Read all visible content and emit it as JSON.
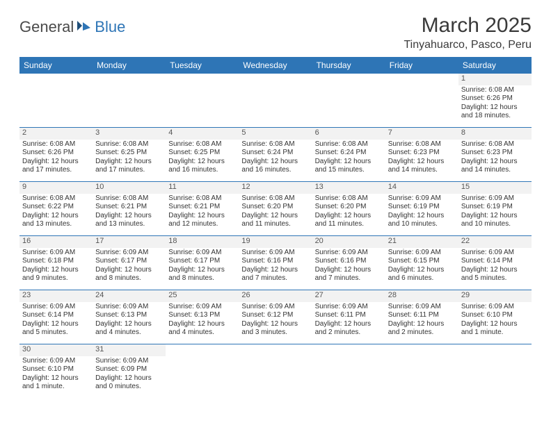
{
  "logo": {
    "general": "General",
    "blue": "Blue"
  },
  "title": "March 2025",
  "location": "Tinyahuarco, Pasco, Peru",
  "day_headers": [
    "Sunday",
    "Monday",
    "Tuesday",
    "Wednesday",
    "Thursday",
    "Friday",
    "Saturday"
  ],
  "colors": {
    "header_bg": "#2e75b6",
    "header_text": "#ffffff",
    "border": "#2e75b6",
    "empty_bg": "#f2f2f2",
    "text": "#333333"
  },
  "weeks": [
    [
      null,
      null,
      null,
      null,
      null,
      null,
      {
        "n": "1",
        "sr": "Sunrise: 6:08 AM",
        "ss": "Sunset: 6:26 PM",
        "d1": "Daylight: 12 hours",
        "d2": "and 18 minutes."
      }
    ],
    [
      {
        "n": "2",
        "sr": "Sunrise: 6:08 AM",
        "ss": "Sunset: 6:26 PM",
        "d1": "Daylight: 12 hours",
        "d2": "and 17 minutes."
      },
      {
        "n": "3",
        "sr": "Sunrise: 6:08 AM",
        "ss": "Sunset: 6:25 PM",
        "d1": "Daylight: 12 hours",
        "d2": "and 17 minutes."
      },
      {
        "n": "4",
        "sr": "Sunrise: 6:08 AM",
        "ss": "Sunset: 6:25 PM",
        "d1": "Daylight: 12 hours",
        "d2": "and 16 minutes."
      },
      {
        "n": "5",
        "sr": "Sunrise: 6:08 AM",
        "ss": "Sunset: 6:24 PM",
        "d1": "Daylight: 12 hours",
        "d2": "and 16 minutes."
      },
      {
        "n": "6",
        "sr": "Sunrise: 6:08 AM",
        "ss": "Sunset: 6:24 PM",
        "d1": "Daylight: 12 hours",
        "d2": "and 15 minutes."
      },
      {
        "n": "7",
        "sr": "Sunrise: 6:08 AM",
        "ss": "Sunset: 6:23 PM",
        "d1": "Daylight: 12 hours",
        "d2": "and 14 minutes."
      },
      {
        "n": "8",
        "sr": "Sunrise: 6:08 AM",
        "ss": "Sunset: 6:23 PM",
        "d1": "Daylight: 12 hours",
        "d2": "and 14 minutes."
      }
    ],
    [
      {
        "n": "9",
        "sr": "Sunrise: 6:08 AM",
        "ss": "Sunset: 6:22 PM",
        "d1": "Daylight: 12 hours",
        "d2": "and 13 minutes."
      },
      {
        "n": "10",
        "sr": "Sunrise: 6:08 AM",
        "ss": "Sunset: 6:21 PM",
        "d1": "Daylight: 12 hours",
        "d2": "and 13 minutes."
      },
      {
        "n": "11",
        "sr": "Sunrise: 6:08 AM",
        "ss": "Sunset: 6:21 PM",
        "d1": "Daylight: 12 hours",
        "d2": "and 12 minutes."
      },
      {
        "n": "12",
        "sr": "Sunrise: 6:08 AM",
        "ss": "Sunset: 6:20 PM",
        "d1": "Daylight: 12 hours",
        "d2": "and 11 minutes."
      },
      {
        "n": "13",
        "sr": "Sunrise: 6:08 AM",
        "ss": "Sunset: 6:20 PM",
        "d1": "Daylight: 12 hours",
        "d2": "and 11 minutes."
      },
      {
        "n": "14",
        "sr": "Sunrise: 6:09 AM",
        "ss": "Sunset: 6:19 PM",
        "d1": "Daylight: 12 hours",
        "d2": "and 10 minutes."
      },
      {
        "n": "15",
        "sr": "Sunrise: 6:09 AM",
        "ss": "Sunset: 6:19 PM",
        "d1": "Daylight: 12 hours",
        "d2": "and 10 minutes."
      }
    ],
    [
      {
        "n": "16",
        "sr": "Sunrise: 6:09 AM",
        "ss": "Sunset: 6:18 PM",
        "d1": "Daylight: 12 hours",
        "d2": "and 9 minutes."
      },
      {
        "n": "17",
        "sr": "Sunrise: 6:09 AM",
        "ss": "Sunset: 6:17 PM",
        "d1": "Daylight: 12 hours",
        "d2": "and 8 minutes."
      },
      {
        "n": "18",
        "sr": "Sunrise: 6:09 AM",
        "ss": "Sunset: 6:17 PM",
        "d1": "Daylight: 12 hours",
        "d2": "and 8 minutes."
      },
      {
        "n": "19",
        "sr": "Sunrise: 6:09 AM",
        "ss": "Sunset: 6:16 PM",
        "d1": "Daylight: 12 hours",
        "d2": "and 7 minutes."
      },
      {
        "n": "20",
        "sr": "Sunrise: 6:09 AM",
        "ss": "Sunset: 6:16 PM",
        "d1": "Daylight: 12 hours",
        "d2": "and 7 minutes."
      },
      {
        "n": "21",
        "sr": "Sunrise: 6:09 AM",
        "ss": "Sunset: 6:15 PM",
        "d1": "Daylight: 12 hours",
        "d2": "and 6 minutes."
      },
      {
        "n": "22",
        "sr": "Sunrise: 6:09 AM",
        "ss": "Sunset: 6:14 PM",
        "d1": "Daylight: 12 hours",
        "d2": "and 5 minutes."
      }
    ],
    [
      {
        "n": "23",
        "sr": "Sunrise: 6:09 AM",
        "ss": "Sunset: 6:14 PM",
        "d1": "Daylight: 12 hours",
        "d2": "and 5 minutes."
      },
      {
        "n": "24",
        "sr": "Sunrise: 6:09 AM",
        "ss": "Sunset: 6:13 PM",
        "d1": "Daylight: 12 hours",
        "d2": "and 4 minutes."
      },
      {
        "n": "25",
        "sr": "Sunrise: 6:09 AM",
        "ss": "Sunset: 6:13 PM",
        "d1": "Daylight: 12 hours",
        "d2": "and 4 minutes."
      },
      {
        "n": "26",
        "sr": "Sunrise: 6:09 AM",
        "ss": "Sunset: 6:12 PM",
        "d1": "Daylight: 12 hours",
        "d2": "and 3 minutes."
      },
      {
        "n": "27",
        "sr": "Sunrise: 6:09 AM",
        "ss": "Sunset: 6:11 PM",
        "d1": "Daylight: 12 hours",
        "d2": "and 2 minutes."
      },
      {
        "n": "28",
        "sr": "Sunrise: 6:09 AM",
        "ss": "Sunset: 6:11 PM",
        "d1": "Daylight: 12 hours",
        "d2": "and 2 minutes."
      },
      {
        "n": "29",
        "sr": "Sunrise: 6:09 AM",
        "ss": "Sunset: 6:10 PM",
        "d1": "Daylight: 12 hours",
        "d2": "and 1 minute."
      }
    ],
    [
      {
        "n": "30",
        "sr": "Sunrise: 6:09 AM",
        "ss": "Sunset: 6:10 PM",
        "d1": "Daylight: 12 hours",
        "d2": "and 1 minute."
      },
      {
        "n": "31",
        "sr": "Sunrise: 6:09 AM",
        "ss": "Sunset: 6:09 PM",
        "d1": "Daylight: 12 hours",
        "d2": "and 0 minutes."
      },
      null,
      null,
      null,
      null,
      null
    ]
  ]
}
